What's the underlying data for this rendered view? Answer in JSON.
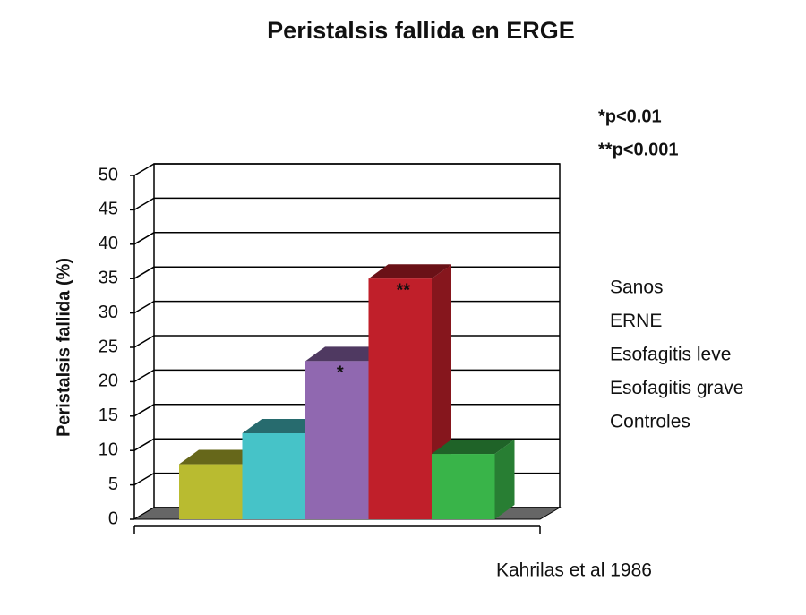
{
  "chart_data": {
    "type": "bar3d",
    "title": "Peristalsis fallida en ERGE",
    "ylabel": "Peristalsis fallida (%)",
    "categories": [
      "Sanos",
      "ERNE",
      "Esofagitis leve",
      "Esofagitis grave",
      "Controles"
    ],
    "values": [
      8,
      12.5,
      23,
      35,
      9.5
    ],
    "colors": [
      "#b9bb30",
      "#46c3c8",
      "#9068b0",
      "#c01f2a",
      "#39b449"
    ],
    "bar_annotations": [
      null,
      null,
      "*",
      "**",
      null
    ],
    "annotations": [
      "*p<0.01",
      "**p<0.001"
    ],
    "source": "Kahrilas et al 1986",
    "ylim": [
      0,
      50
    ],
    "yticks": [
      0,
      5,
      10,
      15,
      20,
      25,
      30,
      35,
      40,
      45,
      50
    ],
    "grid": true
  }
}
